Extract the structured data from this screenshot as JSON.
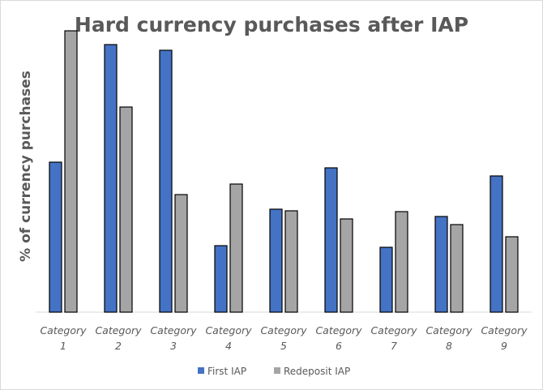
{
  "chart_data": {
    "type": "bar",
    "title": "Hard currency purchases after IAP",
    "xlabel": "",
    "ylabel": "% of currency purchases",
    "ylim": [
      0,
      36
    ],
    "grid": false,
    "legend_position": "bottom",
    "categories": [
      [
        "Category",
        "1"
      ],
      [
        "Category",
        "2"
      ],
      [
        "Category",
        "3"
      ],
      [
        "Category",
        "4"
      ],
      [
        "Category",
        "5"
      ],
      [
        "Category",
        "6"
      ],
      [
        "Category",
        "7"
      ],
      [
        "Category",
        "8"
      ],
      [
        "Category",
        "9"
      ]
    ],
    "series": [
      {
        "name": "First IAP",
        "color": "#4472c4",
        "values": [
          18.5,
          33.0,
          32.3,
          8.2,
          12.7,
          17.8,
          8.0,
          11.8,
          16.8
        ]
      },
      {
        "name": "Redeposit IAP",
        "color": "#a5a5a5",
        "values": [
          34.7,
          25.3,
          14.5,
          15.8,
          12.5,
          11.5,
          12.4,
          10.8,
          9.3
        ]
      }
    ]
  }
}
